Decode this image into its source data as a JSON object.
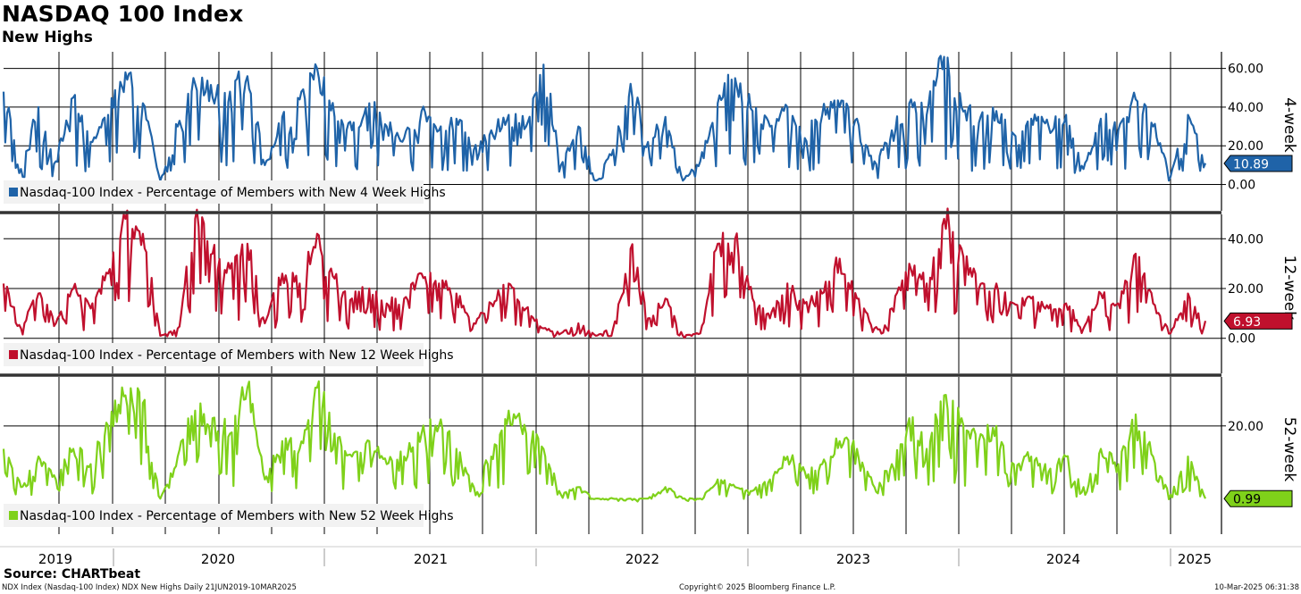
{
  "title": "NASDAQ 100 Index",
  "subtitle": "New Highs",
  "source": "Source: CHARTbeat",
  "footer": {
    "left": "NDX Index (Nasdaq-100 Index) NDX New Highs  Daily 21JUN2019-10MAR2025",
    "center": "Copyright© 2025 Bloomberg Finance L.P.",
    "right": "10-Mar-2025 06:31:38"
  },
  "colors": {
    "four_week": "#1f63a8",
    "twelve_week": "#c0102d",
    "fifty_two_week": "#7fd11a"
  },
  "chart_data": [
    {
      "type": "line",
      "panel_label": "4-week",
      "legend": "Nasdaq-100 Index - Percentage of Members with New 4 Week Highs",
      "yticks": [
        0,
        20,
        40,
        60
      ],
      "ytick_labels": [
        "0.00",
        "20.00",
        "40.00",
        "60.00"
      ],
      "ylim": [
        -13.6,
        68.6
      ],
      "last_value": 10.89,
      "last_value_label": "10.89",
      "x": [
        "2019-06",
        "2019-07",
        "2019-08",
        "2019-09",
        "2019-10",
        "2019-11",
        "2019-12",
        "2020-01",
        "2020-02",
        "2020-03",
        "2020-04",
        "2020-05",
        "2020-06",
        "2020-07",
        "2020-08",
        "2020-09",
        "2020-10",
        "2020-11",
        "2020-12",
        "2021-01",
        "2021-02",
        "2021-03",
        "2021-04",
        "2021-05",
        "2021-06",
        "2021-07",
        "2021-08",
        "2021-09",
        "2021-10",
        "2021-11",
        "2021-12",
        "2022-01",
        "2022-02",
        "2022-03",
        "2022-04",
        "2022-05",
        "2022-06",
        "2022-07",
        "2022-08",
        "2022-09",
        "2022-10",
        "2022-11",
        "2022-12",
        "2023-01",
        "2023-02",
        "2023-03",
        "2023-04",
        "2023-05",
        "2023-06",
        "2023-07",
        "2023-08",
        "2023-09",
        "2023-10",
        "2023-11",
        "2023-12",
        "2024-01",
        "2024-02",
        "2024-03",
        "2024-04",
        "2024-05",
        "2024-06",
        "2024-07",
        "2024-08",
        "2024-09",
        "2024-10",
        "2024-11",
        "2024-12",
        "2025-01",
        "2025-02",
        "2025-03"
      ],
      "values": [
        48,
        8,
        40,
        12,
        45,
        22,
        36,
        58,
        42,
        2,
        30,
        52,
        45,
        48,
        56,
        10,
        35,
        44,
        60,
        35,
        28,
        42,
        30,
        24,
        38,
        28,
        34,
        18,
        28,
        36,
        30,
        62,
        10,
        30,
        2,
        18,
        52,
        22,
        35,
        2,
        12,
        42,
        55,
        38,
        30,
        40,
        24,
        36,
        40,
        34,
        12,
        28,
        42,
        36,
        66,
        40,
        32,
        38,
        26,
        34,
        30,
        36,
        8,
        34,
        28,
        44,
        30,
        4,
        36,
        11
      ]
    },
    {
      "type": "line",
      "panel_label": "12-week",
      "legend": "Nasdaq-100 Index - Percentage of Members with New 12 Week Highs",
      "yticks": [
        0,
        20,
        40
      ],
      "ytick_labels": [
        "0.00",
        "20.00",
        "40.00"
      ],
      "ylim": [
        -14.1,
        49.8
      ],
      "last_value": 6.93,
      "last_value_label": "6.93",
      "x": [
        "2019-06",
        "2019-07",
        "2019-08",
        "2019-09",
        "2019-10",
        "2019-11",
        "2019-12",
        "2020-01",
        "2020-02",
        "2020-03",
        "2020-04",
        "2020-05",
        "2020-06",
        "2020-07",
        "2020-08",
        "2020-09",
        "2020-10",
        "2020-11",
        "2020-12",
        "2021-01",
        "2021-02",
        "2021-03",
        "2021-04",
        "2021-05",
        "2021-06",
        "2021-07",
        "2021-08",
        "2021-09",
        "2021-10",
        "2021-11",
        "2021-12",
        "2022-01",
        "2022-02",
        "2022-03",
        "2022-04",
        "2022-05",
        "2022-06",
        "2022-07",
        "2022-08",
        "2022-09",
        "2022-10",
        "2022-11",
        "2022-12",
        "2023-01",
        "2023-02",
        "2023-03",
        "2023-04",
        "2023-05",
        "2023-06",
        "2023-07",
        "2023-08",
        "2023-09",
        "2023-10",
        "2023-11",
        "2023-12",
        "2024-01",
        "2024-02",
        "2024-03",
        "2024-04",
        "2024-05",
        "2024-06",
        "2024-07",
        "2024-08",
        "2024-09",
        "2024-10",
        "2024-11",
        "2024-12",
        "2025-01",
        "2025-02",
        "2025-03"
      ],
      "values": [
        22,
        4,
        18,
        6,
        20,
        12,
        26,
        48,
        42,
        1,
        4,
        48,
        34,
        28,
        38,
        6,
        26,
        22,
        42,
        24,
        16,
        20,
        14,
        16,
        26,
        22,
        18,
        6,
        14,
        22,
        12,
        4,
        2,
        6,
        1,
        4,
        36,
        8,
        16,
        1,
        2,
        38,
        40,
        16,
        8,
        22,
        14,
        18,
        32,
        16,
        4,
        12,
        30,
        22,
        48,
        36,
        20,
        22,
        14,
        16,
        12,
        14,
        4,
        18,
        14,
        34,
        14,
        2,
        18,
        7
      ]
    },
    {
      "type": "line",
      "panel_label": "52-week",
      "legend": "Nasdaq-100 Index - Percentage of Members with New 52 Week Highs",
      "yticks": [
        20
      ],
      "ytick_labels": [
        "20.00"
      ],
      "ylim": [
        -8.3,
        32.8
      ],
      "last_value": 0.99,
      "last_value_label": "0.99",
      "x": [
        "2019-06",
        "2019-07",
        "2019-08",
        "2019-09",
        "2019-10",
        "2019-11",
        "2019-12",
        "2020-01",
        "2020-02",
        "2020-03",
        "2020-04",
        "2020-05",
        "2020-06",
        "2020-07",
        "2020-08",
        "2020-09",
        "2020-10",
        "2020-11",
        "2020-12",
        "2021-01",
        "2021-02",
        "2021-03",
        "2021-04",
        "2021-05",
        "2021-06",
        "2021-07",
        "2021-08",
        "2021-09",
        "2021-10",
        "2021-11",
        "2021-12",
        "2022-01",
        "2022-02",
        "2022-03",
        "2022-04",
        "2022-05",
        "2022-06",
        "2022-07",
        "2022-08",
        "2022-09",
        "2022-10",
        "2022-11",
        "2022-12",
        "2023-01",
        "2023-02",
        "2023-03",
        "2023-04",
        "2023-05",
        "2023-06",
        "2023-07",
        "2023-08",
        "2023-09",
        "2023-10",
        "2023-11",
        "2023-12",
        "2024-01",
        "2024-02",
        "2024-03",
        "2024-04",
        "2024-05",
        "2024-06",
        "2024-07",
        "2024-08",
        "2024-09",
        "2024-10",
        "2024-11",
        "2024-12",
        "2025-01",
        "2025-02",
        "2025-03"
      ],
      "values": [
        14,
        4,
        12,
        6,
        14,
        10,
        20,
        28,
        26,
        1,
        12,
        24,
        22,
        18,
        30,
        6,
        16,
        14,
        30,
        18,
        12,
        16,
        10,
        12,
        18,
        20,
        14,
        4,
        12,
        24,
        18,
        14,
        2,
        4,
        1,
        1,
        1,
        1,
        4,
        1,
        1,
        6,
        4,
        3,
        6,
        12,
        8,
        10,
        16,
        14,
        4,
        10,
        22,
        14,
        28,
        22,
        16,
        20,
        10,
        12,
        8,
        12,
        4,
        14,
        10,
        23,
        12,
        2,
        12,
        1
      ]
    }
  ],
  "x_axis": {
    "year_labels": [
      "2019",
      "2020",
      "2021",
      "2022",
      "2023",
      "2024",
      "2025"
    ]
  }
}
